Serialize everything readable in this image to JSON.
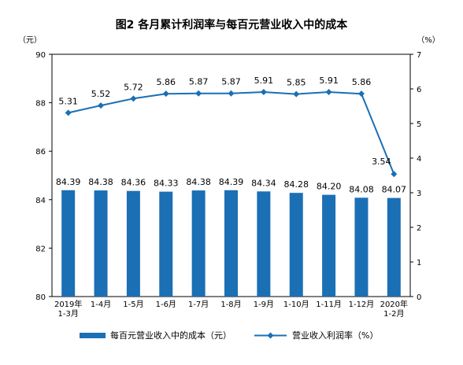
{
  "chart_data": {
    "type": "bar+line",
    "title": "图2  各月累计利润率与每百元营业收入中的成本",
    "left_unit": "（元）",
    "right_unit": "（%）",
    "categories": [
      [
        "2019年",
        "1-3月"
      ],
      [
        "1-4月"
      ],
      [
        "1-5月"
      ],
      [
        "1-6月"
      ],
      [
        "1-7月"
      ],
      [
        "1-8月"
      ],
      [
        "1-9月"
      ],
      [
        "1-10月"
      ],
      [
        "1-11月"
      ],
      [
        "1-12月"
      ],
      [
        "2020年",
        "1-2月"
      ]
    ],
    "left_axis": {
      "min": 80,
      "max": 90,
      "ticks": [
        "80",
        "82",
        "84",
        "86",
        "88",
        "90"
      ]
    },
    "right_axis": {
      "min": 0,
      "max": 7,
      "ticks": [
        "0",
        "1",
        "2",
        "3",
        "4",
        "5",
        "6",
        "7"
      ]
    },
    "series": [
      {
        "name": "每百元营业收入中的成本（元）",
        "kind": "bar",
        "axis": "left",
        "color": "#1b6fb5",
        "values": [
          84.39,
          84.38,
          84.36,
          84.33,
          84.38,
          84.39,
          84.34,
          84.28,
          84.2,
          84.08,
          84.07
        ],
        "labels": [
          "84.39",
          "84.38",
          "84.36",
          "84.33",
          "84.38",
          "84.39",
          "84.34",
          "84.28",
          "84.20",
          "84.08",
          "84.07"
        ]
      },
      {
        "name": "营业收入利润率（%）",
        "kind": "line",
        "axis": "right",
        "color": "#1b6fb5",
        "values": [
          5.31,
          5.52,
          5.72,
          5.86,
          5.87,
          5.87,
          5.91,
          5.85,
          5.91,
          5.86,
          3.54
        ],
        "labels": [
          "5.31",
          "5.52",
          "5.72",
          "5.86",
          "5.87",
          "5.87",
          "5.91",
          "5.85",
          "5.91",
          "5.86",
          "3.54"
        ]
      }
    ],
    "legend_position": "bottom",
    "grid": false
  }
}
